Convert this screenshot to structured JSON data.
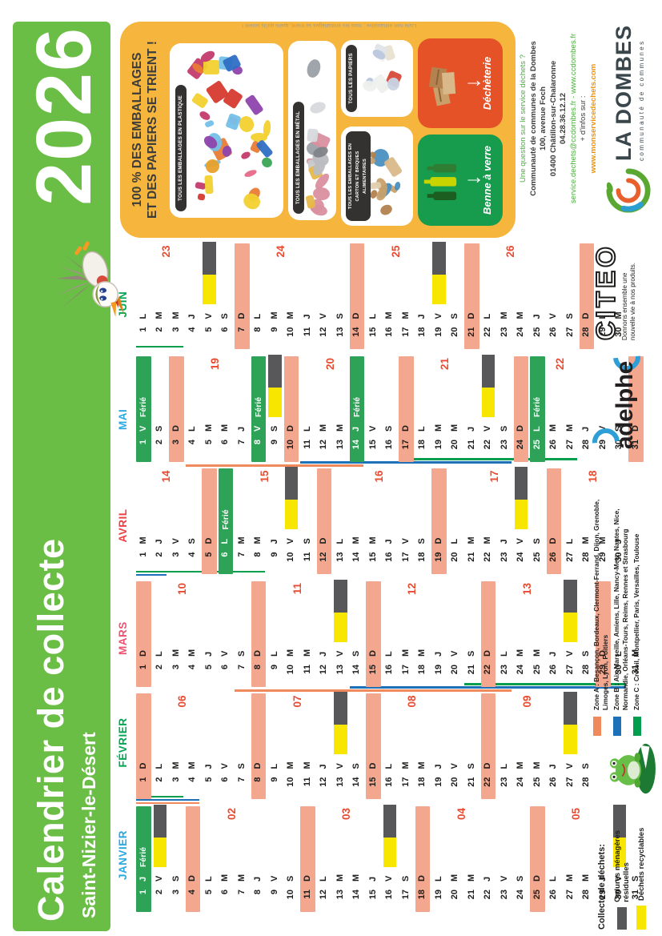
{
  "banner": {
    "title": "Calendrier de collecte",
    "commune": "Saint-Nizier-le-Désert",
    "year": "2026"
  },
  "panel": {
    "title_line1": "100 % DES EMBALLAGES",
    "title_line2": "ET DES PAPIERS SE TRIENT !",
    "caption": "Liste non exhaustive : tous les emballages se trient, quels qu'ils soient !",
    "cards": [
      {
        "id": "plastique",
        "label": "TOUS LES EMBALLAGES EN PLASTIQUE"
      },
      {
        "id": "metal",
        "label": "TOUS LES EMBALLAGES EN MÉTAL"
      },
      {
        "id": "carton",
        "label": "TOUS LES EMBALLAGES EN CARTON ET BRIQUES ALIMENTAIRES"
      },
      {
        "id": "papiers",
        "label": "TOUS LES PAPIERS"
      }
    ],
    "bins": [
      {
        "id": "verre",
        "label": "Benne à verre",
        "color": "#179c4e"
      },
      {
        "id": "dechetterie",
        "label": "Déchèterie",
        "color": "#e55228"
      }
    ]
  },
  "contact": {
    "question": "Une question sur le service déchets ?",
    "org": "Communauté de communes de la Dombes",
    "address1": "100, avenue Foch",
    "address2": "01400 Châtillon-sur-Chalaronne",
    "phone": "04.28.36.12.12",
    "email_web": "service.dechets@ccdombes.fr - www.ccdombes.fr",
    "more": "+ d'infos sur :",
    "url": "www.monservicedechets.com"
  },
  "logos": {
    "ladombes": "LA DOMBES",
    "ladombes_sub": "communauté de communes",
    "citeo": "CITEO",
    "citeo_tag1": "Donnons ensemble une",
    "citeo_tag2": "nouvelle vie à nos produits.",
    "adelphe": "adelphe"
  },
  "legend": {
    "title": "Collecte de déchets:",
    "items": [
      {
        "label": "Ordures ménagères résiduelles",
        "color": "#58585a"
      },
      {
        "label": "Déchets recyclables",
        "color": "#f7e700"
      }
    ]
  },
  "zones": [
    {
      "color": "#f08a5c",
      "line1": "Zone A : Besançon, Bordeaux, Clermont-Ferrand, Dijon, Grenoble,",
      "line2": "Limoges, Lyon, Poitiers"
    },
    {
      "color": "#1d71b8",
      "line1": "Zone B : Aix-Marseille, Amiens, Lille, Nancy-Metz, Nantes, Nice,",
      "line2": "Normandie, Orléans-Tours, Reims, Rennes et Strasbourg"
    },
    {
      "color": "#009e4d",
      "line1": "Zone C : Créteil, Montpellier, Paris, Versailles, Toulouse",
      "line2": ""
    }
  ],
  "calendar": {
    "weekday_letters": [
      "L",
      "M",
      "M",
      "J",
      "V",
      "S",
      "D"
    ],
    "ferie_label": "Férié",
    "colors": {
      "sunday": "#f3a78f",
      "ferie": "#2ea257",
      "waste_gray": "#58585a",
      "recycle_yellow": "#f7e700",
      "week_red": "#e84b31",
      "zone": {
        "A": "#f08a5c",
        "B": "#1d71b8",
        "C": "#009e4d"
      }
    },
    "months": [
      {
        "name": "JANVIER",
        "color": "#2aa9e0",
        "days": 31,
        "start": 3,
        "ferie": [
          1
        ],
        "sundays": [
          4,
          11,
          18,
          25
        ],
        "collections": [
          2,
          16,
          30
        ],
        "weeks": [
          {
            "n": "02",
            "day": 6
          },
          {
            "n": "03",
            "day": 13
          },
          {
            "n": "04",
            "day": 20
          },
          {
            "n": "05",
            "day": 27
          }
        ],
        "vacations": [
          {
            "zone": "A",
            "from": 1,
            "to": 4
          },
          {
            "zone": "B",
            "from": 1,
            "to": 4
          },
          {
            "zone": "C",
            "from": 1,
            "to": 3
          }
        ]
      },
      {
        "name": "FÉVRIER",
        "color": "#00a651",
        "days": 28,
        "start": 6,
        "ferie": [],
        "sundays": [
          1,
          8,
          15,
          22
        ],
        "collections": [
          13,
          27
        ],
        "weeks": [
          {
            "n": "06",
            "day": 3
          },
          {
            "n": "07",
            "day": 10
          },
          {
            "n": "08",
            "day": 17
          },
          {
            "n": "09",
            "day": 24
          }
        ],
        "vacations": [
          {
            "zone": "A",
            "from": 7,
            "to": 23
          },
          {
            "zone": "B",
            "from": 14,
            "to": 30
          },
          {
            "zone": "C",
            "from": 21,
            "to": 30
          }
        ]
      },
      {
        "name": "MARS",
        "color": "#ee5170",
        "days": 31,
        "start": 6,
        "ferie": [],
        "sundays": [
          1,
          8,
          15,
          22,
          29
        ],
        "collections": [
          13,
          27
        ],
        "weeks": [
          {
            "n": "10",
            "day": 3
          },
          {
            "n": "11",
            "day": 10
          },
          {
            "n": "12",
            "day": 17
          },
          {
            "n": "13",
            "day": 24
          }
        ],
        "vacations": [
          {
            "zone": "B",
            "from": 1,
            "to": 2
          },
          {
            "zone": "C",
            "from": 1,
            "to": 8
          }
        ]
      },
      {
        "name": "AVRIL",
        "color": "#ee4044",
        "days": 30,
        "start": 2,
        "ferie": [
          6
        ],
        "sundays": [
          5,
          12,
          19,
          26
        ],
        "collections": [
          10,
          24
        ],
        "weeks": [
          {
            "n": "14",
            "day": 2
          },
          {
            "n": "15",
            "day": 8
          },
          {
            "n": "16",
            "day": 15
          },
          {
            "n": "17",
            "day": 22
          },
          {
            "n": "18",
            "day": 28
          }
        ],
        "vacations": [
          {
            "zone": "A",
            "from": 4,
            "to": 14
          },
          {
            "zone": "B",
            "from": 11,
            "to": 23
          },
          {
            "zone": "C",
            "from": 17,
            "to": 27
          }
        ]
      },
      {
        "name": "MAI",
        "color": "#2aa9e0",
        "days": 31,
        "start": 4,
        "ferie": [
          1,
          8,
          14,
          25
        ],
        "sundays": [
          3,
          10,
          17,
          24,
          31
        ],
        "collections": [
          9,
          22
        ],
        "weeks": [
          {
            "n": "19",
            "day": 5
          },
          {
            "n": "20",
            "day": 12
          },
          {
            "n": "21",
            "day": 19
          },
          {
            "n": "22",
            "day": 26
          }
        ],
        "vacations": [
          {
            "zone": "C",
            "from": 1,
            "to": 3
          }
        ]
      },
      {
        "name": "JUIN",
        "color": "#00a651",
        "days": 30,
        "start": 0,
        "ferie": [],
        "sundays": [
          7,
          14,
          21,
          28
        ],
        "collections": [
          5,
          19
        ],
        "weeks": [
          {
            "n": "23",
            "day": 2
          },
          {
            "n": "24",
            "day": 9
          },
          {
            "n": "25",
            "day": 16
          },
          {
            "n": "26",
            "day": 23
          }
        ],
        "vacations": []
      }
    ]
  }
}
